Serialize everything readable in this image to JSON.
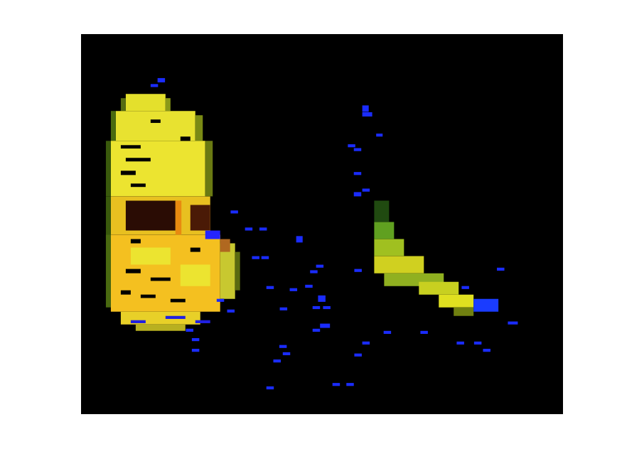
{
  "chart_data": {
    "type": "heatmap",
    "tick_labels": false,
    "xlim": [
      0,
      97
    ],
    "ylim": [
      0,
      89
    ],
    "background": "#000000",
    "cells": [
      {
        "x": 9,
        "y": 14,
        "w": 8,
        "h": 4,
        "color": "#e4e02c"
      },
      {
        "x": 8,
        "y": 15,
        "w": 1,
        "h": 3,
        "color": "#556b12"
      },
      {
        "x": 17,
        "y": 15,
        "w": 1,
        "h": 3,
        "color": "#8a9a18"
      },
      {
        "x": 7,
        "y": 18,
        "w": 16,
        "h": 7,
        "color": "#e8e230"
      },
      {
        "x": 6,
        "y": 18,
        "w": 1,
        "h": 7,
        "color": "#4a6a10"
      },
      {
        "x": 23,
        "y": 19,
        "w": 1.5,
        "h": 6,
        "color": "#7a8a14"
      },
      {
        "x": 6,
        "y": 25,
        "w": 19,
        "h": 13,
        "color": "#ece430"
      },
      {
        "x": 5,
        "y": 25,
        "w": 1,
        "h": 13,
        "color": "#3a5a0c"
      },
      {
        "x": 25,
        "y": 25,
        "w": 1.5,
        "h": 13,
        "color": "#6a7a12"
      },
      {
        "x": 8,
        "y": 26,
        "w": 4,
        "h": 0.8,
        "color": "#000000"
      },
      {
        "x": 9,
        "y": 29,
        "w": 5,
        "h": 0.8,
        "color": "#000000"
      },
      {
        "x": 8,
        "y": 32,
        "w": 3,
        "h": 1,
        "color": "#000000"
      },
      {
        "x": 10,
        "y": 35,
        "w": 3,
        "h": 0.8,
        "color": "#000000"
      },
      {
        "x": 20,
        "y": 24,
        "w": 2,
        "h": 1,
        "color": "#000000"
      },
      {
        "x": 14,
        "y": 20,
        "w": 2,
        "h": 0.8,
        "color": "#000000"
      },
      {
        "x": 6,
        "y": 38,
        "w": 20,
        "h": 9,
        "color": "#e8c020"
      },
      {
        "x": 9,
        "y": 39,
        "w": 10,
        "h": 7,
        "color": "#2a0c04"
      },
      {
        "x": 22,
        "y": 40,
        "w": 4,
        "h": 6,
        "color": "#4a1a06"
      },
      {
        "x": 19,
        "y": 39,
        "w": 1.2,
        "h": 8,
        "color": "#e88a10"
      },
      {
        "x": 5,
        "y": 38,
        "w": 1,
        "h": 10,
        "color": "#3a5a0c"
      },
      {
        "x": 6,
        "y": 47,
        "w": 22,
        "h": 18,
        "color": "#f4c020"
      },
      {
        "x": 5,
        "y": 47,
        "w": 1,
        "h": 17,
        "color": "#4a6a10"
      },
      {
        "x": 28,
        "y": 49,
        "w": 3,
        "h": 13,
        "color": "#c8c830"
      },
      {
        "x": 31,
        "y": 51,
        "w": 1,
        "h": 9,
        "color": "#5a6a10"
      },
      {
        "x": 10,
        "y": 50,
        "w": 8,
        "h": 4,
        "color": "#ece430"
      },
      {
        "x": 20,
        "y": 54,
        "w": 6,
        "h": 5,
        "color": "#ece430"
      },
      {
        "x": 9,
        "y": 55,
        "w": 3,
        "h": 1,
        "color": "#000000"
      },
      {
        "x": 14,
        "y": 57,
        "w": 4,
        "h": 0.8,
        "color": "#000000"
      },
      {
        "x": 8,
        "y": 60,
        "w": 2,
        "h": 1,
        "color": "#000000"
      },
      {
        "x": 12,
        "y": 61,
        "w": 3,
        "h": 0.8,
        "color": "#000000"
      },
      {
        "x": 18,
        "y": 62,
        "w": 3,
        "h": 0.8,
        "color": "#000000"
      },
      {
        "x": 22,
        "y": 50,
        "w": 2,
        "h": 1,
        "color": "#000000"
      },
      {
        "x": 10,
        "y": 48,
        "w": 2,
        "h": 1,
        "color": "#000000"
      },
      {
        "x": 8,
        "y": 65,
        "w": 16,
        "h": 3,
        "color": "#e8d028"
      },
      {
        "x": 11,
        "y": 68,
        "w": 10,
        "h": 1.5,
        "color": "#b8b020"
      },
      {
        "x": 28,
        "y": 48,
        "w": 2,
        "h": 3,
        "color": "#b06820"
      },
      {
        "x": 25,
        "y": 46,
        "w": 3,
        "h": 2,
        "color": "#2424ff"
      },
      {
        "x": 10,
        "y": 67,
        "w": 3,
        "h": 0.7,
        "color": "#2020e0"
      },
      {
        "x": 17,
        "y": 66,
        "w": 4,
        "h": 0.7,
        "color": "#2020e0"
      },
      {
        "x": 23,
        "y": 67,
        "w": 3,
        "h": 0.7,
        "color": "#2020e0"
      },
      {
        "x": 59,
        "y": 39,
        "w": 3,
        "h": 5,
        "color": "#204a10"
      },
      {
        "x": 59,
        "y": 44,
        "w": 4,
        "h": 4,
        "color": "#60a020"
      },
      {
        "x": 59,
        "y": 48,
        "w": 6,
        "h": 4,
        "color": "#a0c020"
      },
      {
        "x": 59,
        "y": 52,
        "w": 10,
        "h": 4,
        "color": "#d0d020"
      },
      {
        "x": 61,
        "y": 56,
        "w": 12,
        "h": 3,
        "color": "#90b020"
      },
      {
        "x": 68,
        "y": 58,
        "w": 8,
        "h": 3,
        "color": "#c8d020"
      },
      {
        "x": 72,
        "y": 61,
        "w": 7,
        "h": 3,
        "color": "#e0e020"
      },
      {
        "x": 75,
        "y": 64,
        "w": 4,
        "h": 2,
        "color": "#708010"
      },
      {
        "x": 79,
        "y": 62,
        "w": 5,
        "h": 3,
        "color": "#1a3cff"
      },
      {
        "x": 15.4,
        "y": 10.3,
        "w": 1.5,
        "h": 1,
        "color": "#1a2cff"
      },
      {
        "x": 14,
        "y": 11.7,
        "w": 1.5,
        "h": 0.7,
        "color": "#1a2cff"
      },
      {
        "x": 56.6,
        "y": 16.7,
        "w": 1.3,
        "h": 1.5,
        "color": "#1a2cff"
      },
      {
        "x": 56.6,
        "y": 18.3,
        "w": 2,
        "h": 1,
        "color": "#1a2cff"
      },
      {
        "x": 59.4,
        "y": 23.3,
        "w": 1.3,
        "h": 0.7,
        "color": "#1a2cff"
      },
      {
        "x": 53.7,
        "y": 25.8,
        "w": 1.5,
        "h": 0.7,
        "color": "#1a2cff"
      },
      {
        "x": 54.9,
        "y": 26.7,
        "w": 1.5,
        "h": 0.7,
        "color": "#1a2cff"
      },
      {
        "x": 54.9,
        "y": 32.3,
        "w": 1.5,
        "h": 0.7,
        "color": "#1a2cff"
      },
      {
        "x": 54.9,
        "y": 37,
        "w": 1.5,
        "h": 1,
        "color": "#1a2cff"
      },
      {
        "x": 56.6,
        "y": 36.2,
        "w": 1.5,
        "h": 0.7,
        "color": "#1a2cff"
      },
      {
        "x": 30.1,
        "y": 41.3,
        "w": 1.5,
        "h": 0.7,
        "color": "#1a2cff"
      },
      {
        "x": 33,
        "y": 45.3,
        "w": 1.5,
        "h": 0.7,
        "color": "#1a2cff"
      },
      {
        "x": 35.9,
        "y": 45.3,
        "w": 1.5,
        "h": 0.7,
        "color": "#1a2cff"
      },
      {
        "x": 43.3,
        "y": 47.3,
        "w": 1.3,
        "h": 1.5,
        "color": "#1a2cff"
      },
      {
        "x": 34.4,
        "y": 52,
        "w": 1.5,
        "h": 0.7,
        "color": "#1a2cff"
      },
      {
        "x": 36.3,
        "y": 52,
        "w": 1.5,
        "h": 0.7,
        "color": "#1a2cff"
      },
      {
        "x": 55,
        "y": 55,
        "w": 1.5,
        "h": 0.7,
        "color": "#1a2cff"
      },
      {
        "x": 47.3,
        "y": 54,
        "w": 1.5,
        "h": 0.7,
        "color": "#1a2cff"
      },
      {
        "x": 46.1,
        "y": 55.3,
        "w": 1.5,
        "h": 0.7,
        "color": "#1a2cff"
      },
      {
        "x": 45.1,
        "y": 58.7,
        "w": 1.5,
        "h": 0.7,
        "color": "#1a2cff"
      },
      {
        "x": 42,
        "y": 59.5,
        "w": 1.5,
        "h": 0.7,
        "color": "#1a2cff"
      },
      {
        "x": 37.3,
        "y": 59,
        "w": 1.5,
        "h": 0.7,
        "color": "#1a2cff"
      },
      {
        "x": 47.7,
        "y": 61.2,
        "w": 1.5,
        "h": 1.5,
        "color": "#1a2cff"
      },
      {
        "x": 46.6,
        "y": 63.7,
        "w": 1.5,
        "h": 0.7,
        "color": "#1a2cff"
      },
      {
        "x": 48.7,
        "y": 63.7,
        "w": 1.5,
        "h": 0.7,
        "color": "#1a2cff"
      },
      {
        "x": 40,
        "y": 64,
        "w": 1.5,
        "h": 0.7,
        "color": "#1a2cff"
      },
      {
        "x": 48.1,
        "y": 67.8,
        "w": 2,
        "h": 1,
        "color": "#1a2cff"
      },
      {
        "x": 46.6,
        "y": 69,
        "w": 1.5,
        "h": 0.7,
        "color": "#1a2cff"
      },
      {
        "x": 60.9,
        "y": 69.5,
        "w": 1.5,
        "h": 0.7,
        "color": "#1a2cff"
      },
      {
        "x": 68.3,
        "y": 69.5,
        "w": 1.5,
        "h": 0.7,
        "color": "#1a2cff"
      },
      {
        "x": 56.6,
        "y": 72,
        "w": 1.5,
        "h": 0.7,
        "color": "#1a2cff"
      },
      {
        "x": 55,
        "y": 74.8,
        "w": 1.5,
        "h": 0.7,
        "color": "#1a2cff"
      },
      {
        "x": 39.9,
        "y": 72.8,
        "w": 1.5,
        "h": 0.7,
        "color": "#1a2cff"
      },
      {
        "x": 40.6,
        "y": 74.5,
        "w": 1.5,
        "h": 0.7,
        "color": "#1a2cff"
      },
      {
        "x": 38.7,
        "y": 76.2,
        "w": 1.5,
        "h": 0.7,
        "color": "#1a2cff"
      },
      {
        "x": 37.3,
        "y": 82.5,
        "w": 1.5,
        "h": 0.7,
        "color": "#1a2cff"
      },
      {
        "x": 50.6,
        "y": 81.7,
        "w": 1.5,
        "h": 0.7,
        "color": "#1a2cff"
      },
      {
        "x": 53.4,
        "y": 81.7,
        "w": 1.5,
        "h": 0.7,
        "color": "#1a2cff"
      },
      {
        "x": 75.6,
        "y": 72,
        "w": 1.5,
        "h": 0.7,
        "color": "#1a2cff"
      },
      {
        "x": 79.1,
        "y": 72,
        "w": 1.5,
        "h": 0.7,
        "color": "#1a2cff"
      },
      {
        "x": 80.9,
        "y": 73.7,
        "w": 1.5,
        "h": 0.7,
        "color": "#1a2cff"
      },
      {
        "x": 83.7,
        "y": 54.7,
        "w": 1.5,
        "h": 0.7,
        "color": "#1a2cff"
      },
      {
        "x": 85.9,
        "y": 67.3,
        "w": 2,
        "h": 0.7,
        "color": "#1a2cff"
      },
      {
        "x": 76.6,
        "y": 59,
        "w": 1.5,
        "h": 0.7,
        "color": "#1a2cff"
      },
      {
        "x": 22.3,
        "y": 71.2,
        "w": 1.5,
        "h": 0.7,
        "color": "#1a2cff"
      },
      {
        "x": 22.3,
        "y": 73.7,
        "w": 1.5,
        "h": 0.7,
        "color": "#1a2cff"
      },
      {
        "x": 21.1,
        "y": 69,
        "w": 1.5,
        "h": 0.7,
        "color": "#1a2cff"
      },
      {
        "x": 27.3,
        "y": 62,
        "w": 1.5,
        "h": 0.7,
        "color": "#1a2cff"
      },
      {
        "x": 29.4,
        "y": 64.5,
        "w": 1.5,
        "h": 0.7,
        "color": "#1a2cff"
      }
    ]
  }
}
